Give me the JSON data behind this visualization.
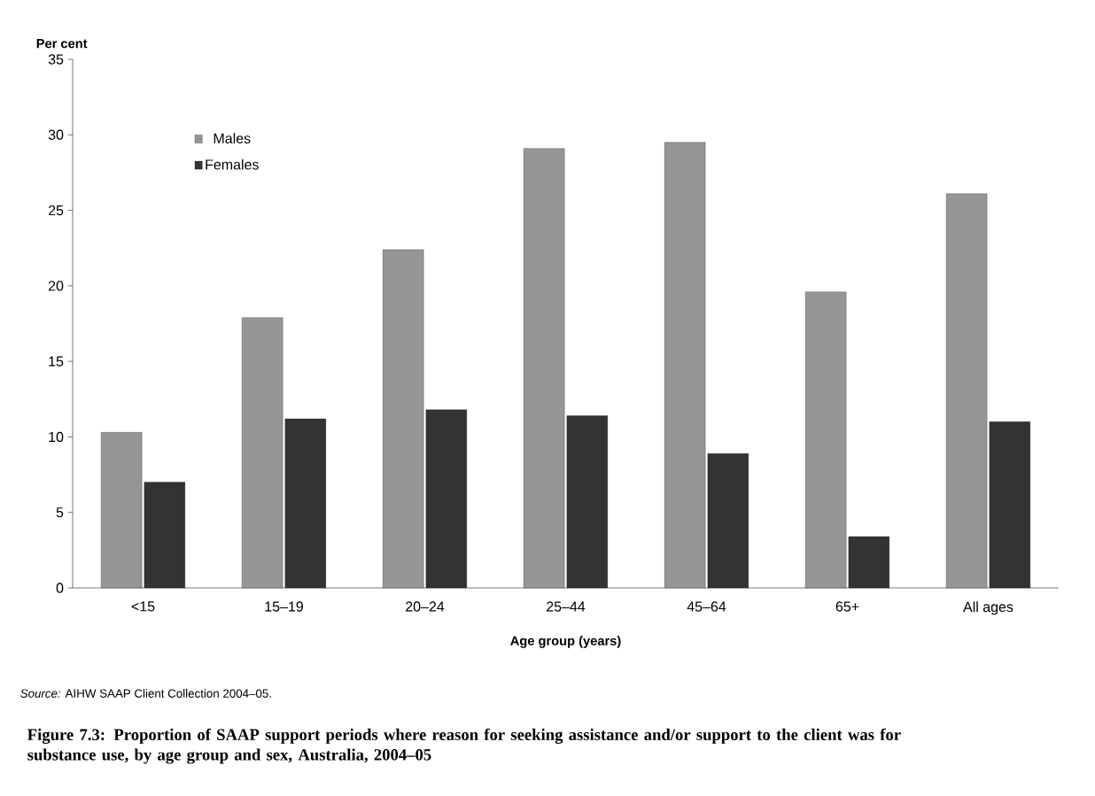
{
  "chart_data": {
    "type": "bar",
    "title": "Figure 7.3: Proportion of SAAP support periods where reason for seeking assistance and/or support to the client was for substance use, by age group and sex, Australia, 2004–05",
    "xlabel": "Age group (years)",
    "ylabel": "Per cent",
    "categories": [
      "<15",
      "15–19",
      "20–24",
      "25–44",
      "45–64",
      "65+",
      "All ages"
    ],
    "series": [
      {
        "name": "Males",
        "color": "#969696",
        "values": [
          10.3,
          17.9,
          22.4,
          29.1,
          29.5,
          19.6,
          26.1
        ]
      },
      {
        "name": "Females",
        "color": "#333333",
        "values": [
          7.0,
          11.2,
          11.8,
          11.4,
          8.9,
          3.4,
          11.0
        ]
      }
    ],
    "ylim": [
      0,
      35
    ],
    "yticks": [
      0,
      5,
      10,
      15,
      20,
      25,
      30,
      35
    ],
    "legend": "top left",
    "grid": false,
    "annotations": [
      "*Source:* AIHW SAAP Client Collection 2004–05."
    ]
  }
}
